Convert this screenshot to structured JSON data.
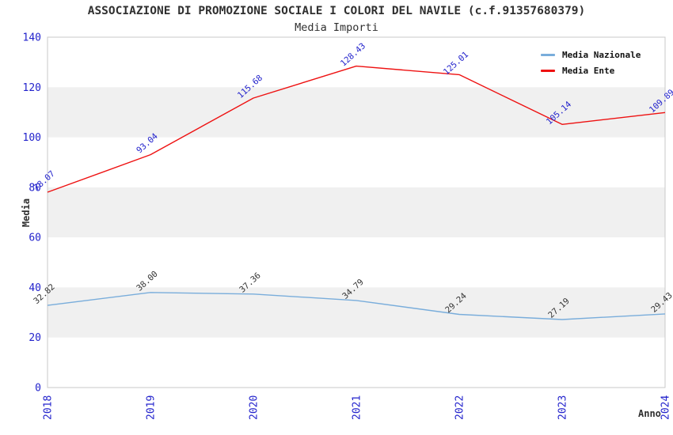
{
  "chart_data": {
    "type": "line",
    "title": "ASSOCIAZIONE DI PROMOZIONE SOCIALE I COLORI DEL NAVILE (c.f.91357680379)",
    "subtitle": "Media Importi",
    "xlabel": "Anno",
    "ylabel": "Media",
    "x": [
      2018,
      2019,
      2020,
      2021,
      2022,
      2023,
      2024
    ],
    "series": [
      {
        "name": "Media Nazionale",
        "color": "#79addb",
        "label_color": "#333333",
        "values": [
          32.82,
          38.0,
          37.36,
          34.79,
          29.24,
          27.19,
          29.43
        ]
      },
      {
        "name": "Media Ente",
        "color": "#ee1111",
        "label_color": "#2222cc",
        "values": [
          78.07,
          93.04,
          115.68,
          128.43,
          125.01,
          105.14,
          109.89
        ]
      }
    ],
    "ylim": [
      0,
      140
    ],
    "ytick_step": 20,
    "yticks": [
      0,
      20,
      40,
      60,
      80,
      100,
      120,
      140
    ],
    "legend_position": "top-right",
    "grid": "alternating-horizontal-bands",
    "colors": {
      "band": "#f0f0f0",
      "plot_border": "#c9c9c9",
      "tick_label": "#2222cc",
      "title_text": "#303030"
    }
  }
}
